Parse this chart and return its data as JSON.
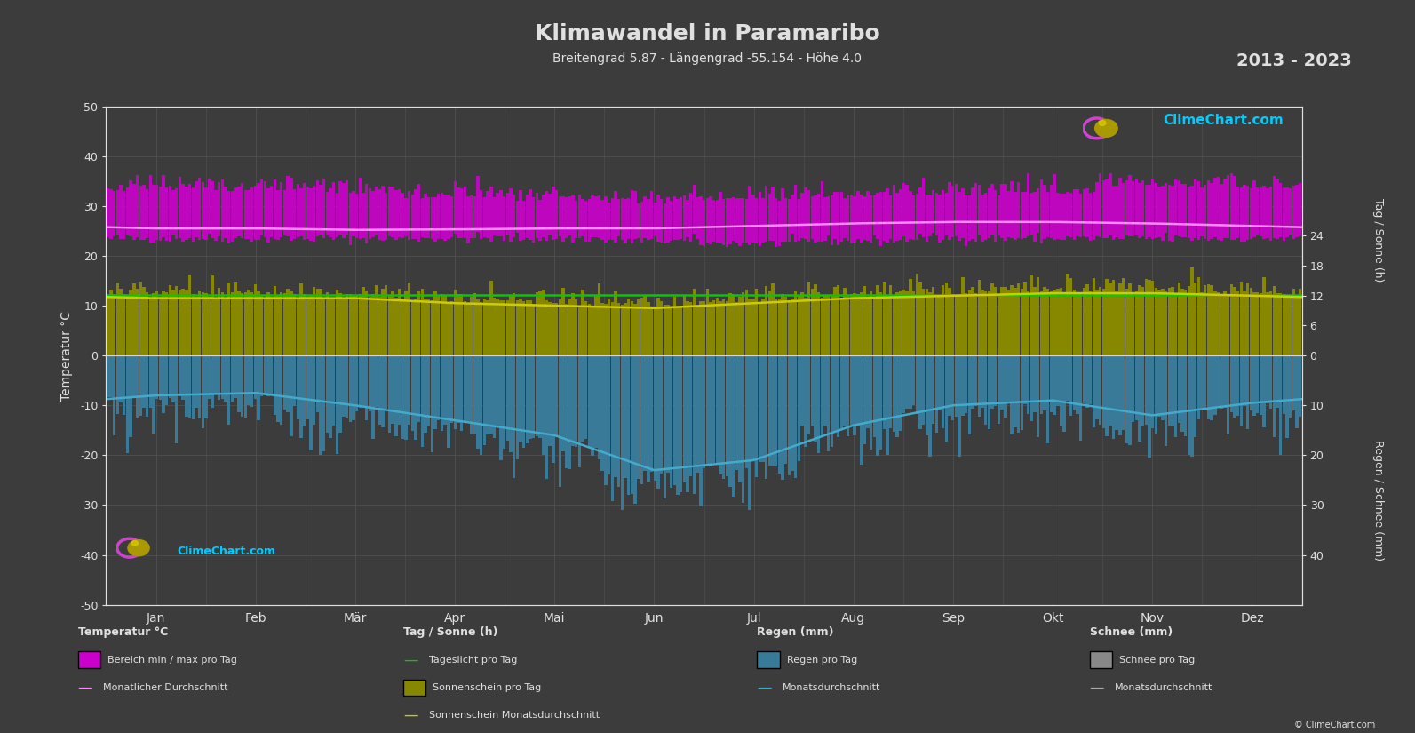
{
  "title": "Klimawandel in Paramaribo",
  "subtitle": "Breitengrad 5.87 - Längengrad -55.154 - Höhe 4.0",
  "year_range": "2013 - 2023",
  "bg_color": "#3c3c3c",
  "text_color": "#e0e0e0",
  "grid_color": "#5a5a5a",
  "months": [
    "Jan",
    "Feb",
    "Mär",
    "Apr",
    "Mai",
    "Jun",
    "Jul",
    "Aug",
    "Sep",
    "Okt",
    "Nov",
    "Dez"
  ],
  "temp_min_monthly": [
    23.5,
    23.5,
    23.5,
    23.5,
    23.5,
    23.0,
    22.5,
    23.0,
    23.5,
    23.5,
    23.5,
    23.5
  ],
  "temp_max_monthly": [
    33.0,
    33.0,
    32.5,
    31.5,
    31.0,
    30.5,
    31.0,
    31.5,
    32.0,
    32.5,
    33.5,
    33.5
  ],
  "temp_avg_monthly": [
    25.5,
    25.5,
    25.2,
    25.3,
    25.5,
    25.5,
    26.0,
    26.5,
    26.8,
    26.8,
    26.5,
    26.0
  ],
  "sunshine_monthly": [
    11.5,
    11.5,
    11.5,
    10.5,
    10.0,
    9.5,
    10.5,
    11.5,
    12.0,
    12.5,
    12.5,
    12.0
  ],
  "daylight_monthly": [
    12.2,
    12.2,
    12.2,
    12.2,
    12.2,
    12.2,
    12.2,
    12.2,
    12.2,
    12.2,
    12.2,
    12.2
  ],
  "rain_monthly_neg": [
    -8.0,
    -7.5,
    -10.0,
    -13.0,
    -16.0,
    -23.0,
    -21.0,
    -14.0,
    -10.0,
    -9.0,
    -12.0,
    -9.5
  ],
  "color_magenta_bar": "#cc00cc",
  "color_olive_bar": "#888800",
  "color_blue_bar": "#3a7a99",
  "color_green_line": "#00cc00",
  "color_yellow_line": "#cccc00",
  "color_magenta_line": "#ff88ff",
  "color_blue_line": "#44aacc",
  "color_gray_bar": "#888888",
  "color_gray_line": "#aaaaaa",
  "watermark_color": "#00ccff",
  "watermark_text": "ClimeChart.com",
  "copyright_text": "© ClimeChart.com",
  "ylabel_left": "Temperatur °C",
  "ylabel_right_top": "Tag / Sonne (h)",
  "ylabel_right_bottom": "Regen / Schnee (mm)",
  "legend_col1_title": "Temperatur °C",
  "legend_col2_title": "Tag / Sonne (h)",
  "legend_col3_title": "Regen (mm)",
  "legend_col4_title": "Schnee (mm)",
  "legend_col1_item1": "Bereich min / max pro Tag",
  "legend_col1_item2": "Monatlicher Durchschnitt",
  "legend_col2_item1": "Tageslicht pro Tag",
  "legend_col2_item2": "Sonnenschein pro Tag",
  "legend_col2_item3": "Sonnenschein Monatsdurchschnitt",
  "legend_col3_item1": "Regen pro Tag",
  "legend_col3_item2": "Monatsdurchschnitt",
  "legend_col4_item1": "Schnee pro Tag",
  "legend_col4_item2": "Monatsdurchschnitt"
}
